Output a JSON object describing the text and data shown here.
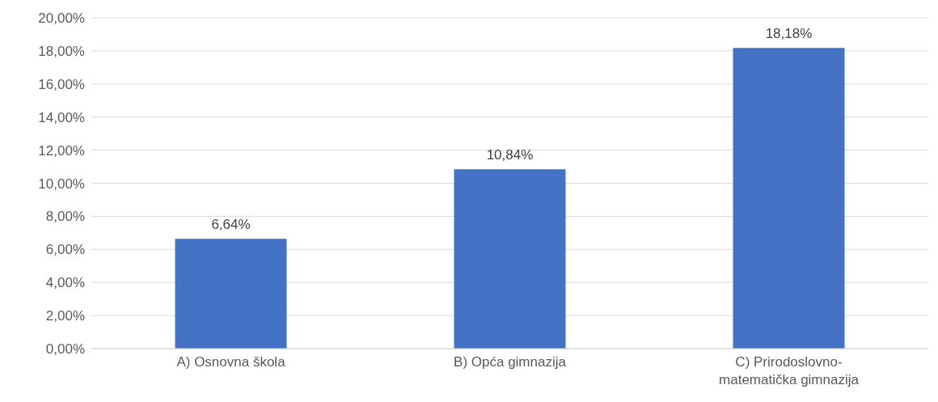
{
  "chart_data": {
    "type": "bar",
    "categories": [
      "A) Osnovna škola",
      "B) Opća gimnazija",
      "C) Prirodoslovno-matematička gimnazija"
    ],
    "values": [
      6.64,
      10.84,
      18.18
    ],
    "value_labels": [
      "6,64%",
      "10,84%",
      "18,18%"
    ],
    "color": "#4472c4",
    "ylim": [
      0,
      20
    ],
    "yticks": [
      {
        "value": 0,
        "label": "0,00%"
      },
      {
        "value": 2,
        "label": "2,00%"
      },
      {
        "value": 4,
        "label": "4,00%"
      },
      {
        "value": 6,
        "label": "6,00%"
      },
      {
        "value": 8,
        "label": "8,00%"
      },
      {
        "value": 10,
        "label": "10,00%"
      },
      {
        "value": 12,
        "label": "12,00%"
      },
      {
        "value": 14,
        "label": "14,00%"
      },
      {
        "value": 16,
        "label": "16,00%"
      },
      {
        "value": 18,
        "label": "18,00%"
      },
      {
        "value": 20,
        "label": "20,00%"
      }
    ],
    "grid": "y"
  }
}
